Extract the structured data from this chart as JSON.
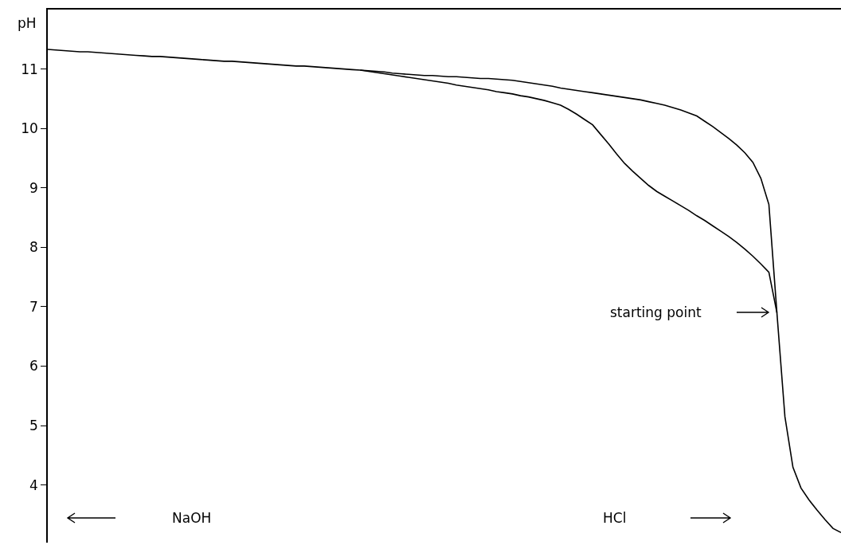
{
  "chart_data": {
    "type": "line",
    "ylabel": "pH",
    "categories": [
      null,
      null,
      null,
      null,
      null,
      null,
      null,
      null,
      null,
      null,
      null,
      null,
      null,
      null,
      null,
      null,
      null,
      null,
      null,
      null,
      null,
      null,
      null,
      null,
      null,
      null,
      null,
      null,
      null,
      null,
      null,
      null,
      null,
      null,
      null,
      null,
      null,
      null,
      null,
      null,
      null,
      null,
      null,
      null,
      null,
      null,
      null,
      null,
      null,
      null,
      null,
      null,
      null,
      null,
      null,
      null,
      null,
      null,
      null,
      null,
      null,
      null,
      null,
      null,
      null,
      null,
      null,
      null,
      null,
      null,
      null,
      null,
      null,
      null,
      null,
      null,
      null,
      null,
      null,
      null,
      null,
      null,
      null,
      null,
      null,
      null,
      null,
      null,
      null,
      null,
      null,
      null,
      null,
      null,
      null,
      null,
      null,
      null,
      null,
      null
    ],
    "series": [
      {
        "color": "#000000",
        "values": [
          11.33,
          11.32,
          11.31,
          11.3,
          11.29,
          11.29,
          11.28,
          11.27,
          11.26,
          11.25,
          11.24,
          11.23,
          11.22,
          11.21,
          11.21,
          11.2,
          11.19,
          11.18,
          11.17,
          11.16,
          11.15,
          11.14,
          11.13,
          11.13,
          11.12,
          11.11,
          11.1,
          11.09,
          11.08,
          11.07,
          11.06,
          11.05,
          11.05,
          11.04,
          11.03,
          11.02,
          11.01,
          11.0,
          10.99,
          10.98,
          10.97,
          10.96,
          10.95,
          10.93,
          10.92,
          10.91,
          10.9,
          10.89,
          10.89,
          10.88,
          10.87,
          10.87,
          10.86,
          10.85,
          10.84,
          10.84,
          10.83,
          10.82,
          10.81,
          10.79,
          10.77,
          10.75,
          10.73,
          10.71,
          10.68,
          10.66,
          10.64,
          10.62,
          10.6,
          10.58,
          10.56,
          10.54,
          10.52,
          10.5,
          10.48,
          10.45,
          10.42,
          10.39,
          10.35,
          10.31,
          10.26,
          10.21,
          10.12,
          10.03,
          9.93,
          9.83,
          9.72,
          9.59,
          9.43,
          9.16,
          8.72,
          6.9,
          5.15,
          4.3,
          3.95,
          3.75,
          3.58,
          3.42,
          3.27,
          3.2
        ]
      },
      {
        "color": "#000000",
        "values": [
          null,
          null,
          null,
          null,
          null,
          null,
          null,
          null,
          null,
          null,
          null,
          null,
          null,
          null,
          null,
          null,
          null,
          null,
          null,
          null,
          null,
          null,
          null,
          null,
          null,
          null,
          null,
          null,
          null,
          null,
          null,
          null,
          null,
          null,
          null,
          null,
          null,
          null,
          null,
          10.98,
          10.96,
          10.94,
          10.92,
          10.9,
          10.88,
          10.86,
          10.84,
          10.82,
          10.8,
          10.78,
          10.76,
          10.73,
          10.71,
          10.69,
          10.67,
          10.65,
          10.62,
          10.6,
          10.58,
          10.55,
          10.53,
          10.5,
          10.47,
          10.43,
          10.39,
          10.32,
          10.24,
          10.15,
          10.06,
          9.9,
          9.74,
          9.57,
          9.41,
          9.28,
          9.16,
          9.04,
          8.94,
          8.86,
          8.78,
          8.7,
          8.62,
          8.53,
          8.45,
          8.36,
          8.27,
          8.18,
          8.08,
          7.97,
          7.85,
          7.72,
          7.58,
          6.9,
          null,
          null,
          null,
          null,
          null,
          null,
          null,
          null
        ]
      }
    ],
    "ylim": [
      3.03,
      12
    ],
    "yticks": [
      4,
      5,
      6,
      7,
      8,
      9,
      10,
      11
    ],
    "tick_labels": "y",
    "grid": false,
    "marker": "none",
    "line_style": "solid",
    "annotations": [
      "NaOH",
      "HCl",
      "starting point"
    ]
  }
}
